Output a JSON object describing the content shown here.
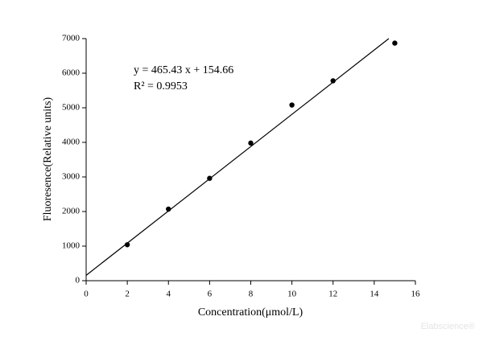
{
  "chart_data": {
    "type": "scatter",
    "x_label": "Concentration(μmol/L)",
    "y_label": "Fluoresence(Relative units)",
    "x": [
      2,
      4,
      6,
      8,
      10,
      12,
      15
    ],
    "values": [
      1040,
      2070,
      2960,
      3980,
      5080,
      5780,
      6870
    ],
    "color": "#000000",
    "xlim": [
      0,
      16
    ],
    "xticks": [
      0,
      2,
      4,
      6,
      8,
      10,
      12,
      14,
      16
    ],
    "ylim": [
      0,
      7000
    ],
    "yticks": [
      0,
      1000,
      2000,
      3000,
      4000,
      5000,
      6000,
      7000
    ],
    "fit": {
      "slope": 465.43,
      "intercept": 154.66,
      "equation": "y = 465.43 x + 154.66",
      "r2_label": "R² = 0.9953"
    },
    "watermark": "Elabscience®"
  }
}
